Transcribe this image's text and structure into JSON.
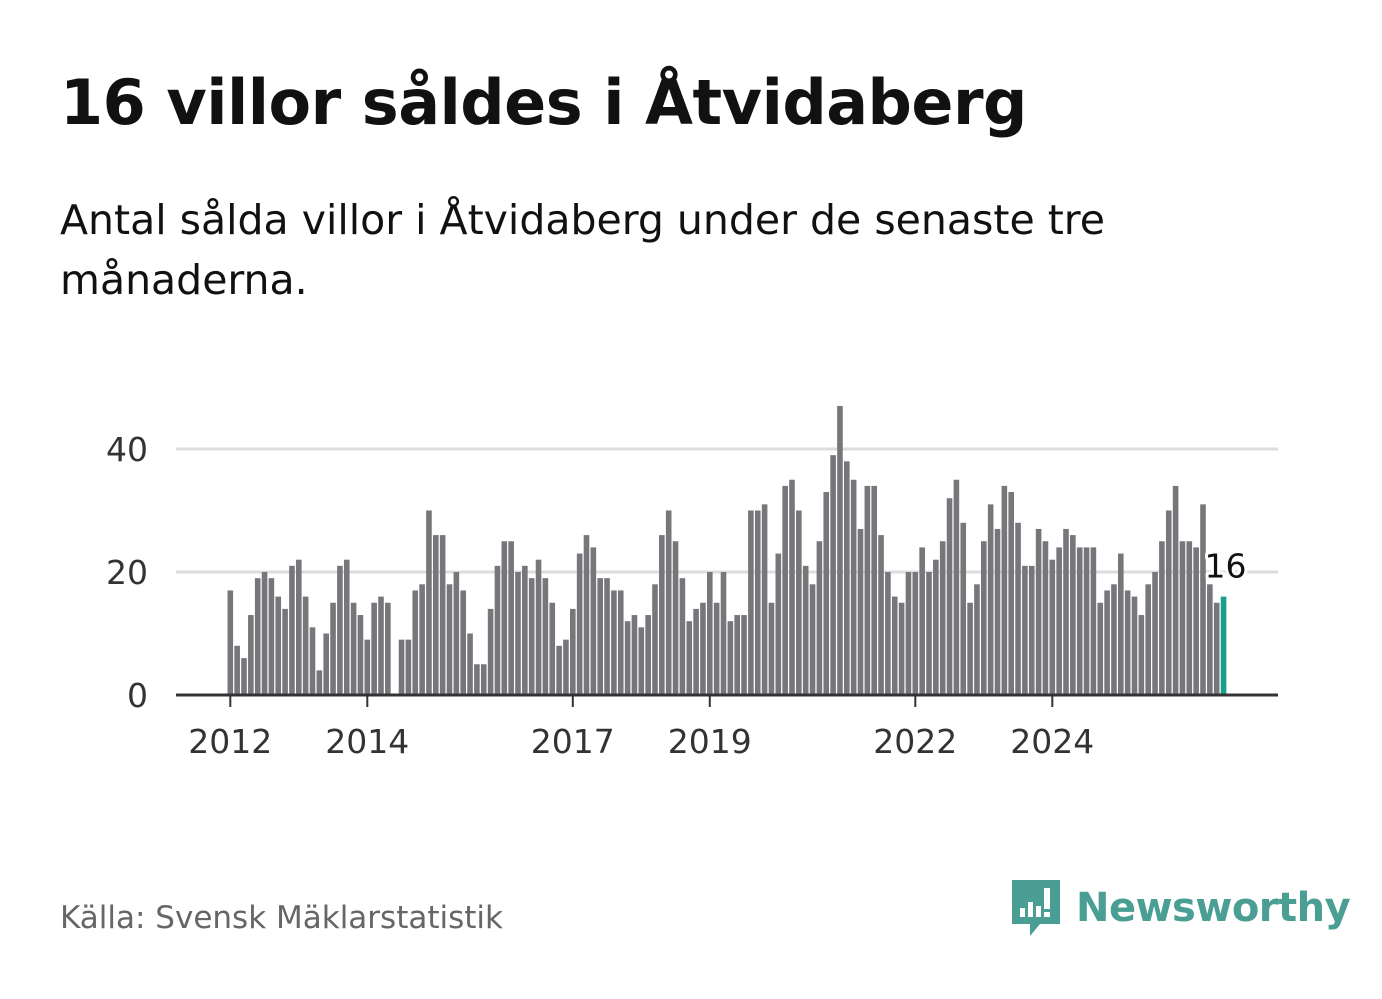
{
  "title": "16 villor såldes i Åtvidaberg",
  "subtitle": "Antal sålda villor i Åtvidaberg under de senaste tre månaderna.",
  "source": "Källa: Svensk Mäklarstatistik",
  "brand": "Newsworthy",
  "colors": {
    "bar": "#77767b",
    "highlight": "#1a9e8f",
    "grid": "#dddddd",
    "axis": "#333333",
    "brand": "#4a9e93"
  },
  "chart_data": {
    "type": "bar",
    "title": "Antal sålda villor i Åtvidaberg",
    "xlabel": "",
    "ylabel": "",
    "ylim": [
      0,
      47
    ],
    "yticks": [
      0,
      20,
      40
    ],
    "xticks": [
      {
        "label": "2012",
        "index": 0
      },
      {
        "label": "2014",
        "index": 20
      },
      {
        "label": "2017",
        "index": 50
      },
      {
        "label": "2019",
        "index": 70
      },
      {
        "label": "2022",
        "index": 100
      },
      {
        "label": "2024",
        "index": 120
      }
    ],
    "values": [
      17,
      8,
      6,
      13,
      19,
      20,
      19,
      16,
      14,
      21,
      22,
      16,
      11,
      4,
      10,
      15,
      21,
      22,
      15,
      13,
      9,
      15,
      16,
      15,
      0,
      9,
      9,
      17,
      18,
      30,
      26,
      26,
      18,
      20,
      17,
      10,
      5,
      5,
      14,
      21,
      25,
      25,
      20,
      21,
      19,
      22,
      19,
      15,
      8,
      9,
      14,
      23,
      26,
      24,
      19,
      19,
      17,
      17,
      12,
      13,
      11,
      13,
      18,
      26,
      30,
      25,
      19,
      12,
      14,
      15,
      20,
      15,
      20,
      12,
      13,
      13,
      30,
      30,
      31,
      15,
      23,
      34,
      35,
      30,
      21,
      18,
      25,
      33,
      39,
      47,
      38,
      35,
      27,
      34,
      34,
      26,
      20,
      16,
      15,
      20,
      20,
      24,
      20,
      22,
      25,
      32,
      35,
      28,
      15,
      18,
      25,
      31,
      27,
      34,
      33,
      28,
      21,
      21,
      27,
      25,
      22,
      24,
      27,
      26,
      24,
      24,
      24,
      15,
      17,
      18,
      23,
      17,
      16,
      13,
      18,
      20,
      25,
      30,
      34,
      25,
      25,
      24,
      31,
      18,
      15,
      16
    ],
    "highlight_index": 145,
    "highlight_label": "16"
  }
}
